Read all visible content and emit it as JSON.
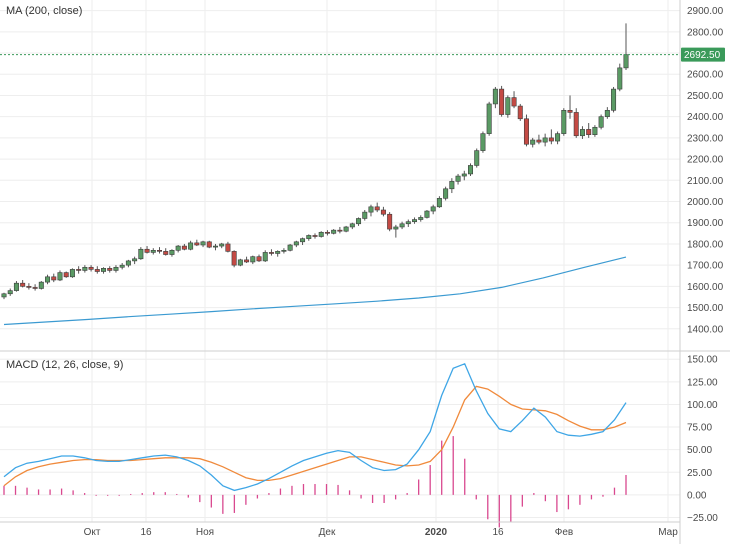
{
  "chart_data": [
    {
      "type": "candlestick",
      "title": "MA (200, close)",
      "ylim": [
        1300,
        2950
      ],
      "y_ticks": [
        "1400.00",
        "1500.00",
        "1600.00",
        "1700.00",
        "1800.00",
        "1900.00",
        "2000.00",
        "2100.00",
        "2200.00",
        "2300.00",
        "2400.00",
        "2500.00",
        "2600.00",
        "2700.00",
        "2800.00",
        "2900.00"
      ],
      "last_price": 2692.5,
      "last_price_label": "2692.50",
      "colors": {
        "up": "#5a9a64",
        "down": "#c44a44",
        "ma": "#3b9ad1",
        "price_line": "#3a9a5a"
      },
      "candles": [
        [
          1550,
          1570,
          1540,
          1565
        ],
        [
          1565,
          1590,
          1555,
          1580
        ],
        [
          1580,
          1625,
          1575,
          1615
        ],
        [
          1615,
          1630,
          1595,
          1600
        ],
        [
          1600,
          1615,
          1585,
          1595
        ],
        [
          1595,
          1610,
          1580,
          1590
        ],
        [
          1590,
          1625,
          1585,
          1620
        ],
        [
          1620,
          1655,
          1610,
          1645
        ],
        [
          1645,
          1660,
          1620,
          1630
        ],
        [
          1630,
          1675,
          1625,
          1665
        ],
        [
          1665,
          1670,
          1640,
          1645
        ],
        [
          1645,
          1685,
          1640,
          1680
        ],
        [
          1680,
          1695,
          1660,
          1675
        ],
        [
          1675,
          1700,
          1665,
          1690
        ],
        [
          1690,
          1700,
          1670,
          1680
        ],
        [
          1680,
          1695,
          1660,
          1670
        ],
        [
          1670,
          1690,
          1660,
          1685
        ],
        [
          1685,
          1695,
          1665,
          1675
        ],
        [
          1675,
          1700,
          1665,
          1690
        ],
        [
          1690,
          1710,
          1680,
          1700
        ],
        [
          1700,
          1725,
          1690,
          1720
        ],
        [
          1720,
          1740,
          1705,
          1730
        ],
        [
          1730,
          1785,
          1725,
          1775
        ],
        [
          1775,
          1790,
          1755,
          1760
        ],
        [
          1760,
          1780,
          1750,
          1770
        ],
        [
          1770,
          1785,
          1755,
          1765
        ],
        [
          1765,
          1780,
          1745,
          1750
        ],
        [
          1750,
          1775,
          1740,
          1770
        ],
        [
          1770,
          1795,
          1760,
          1790
        ],
        [
          1790,
          1800,
          1770,
          1775
        ],
        [
          1775,
          1815,
          1770,
          1805
        ],
        [
          1805,
          1820,
          1790,
          1795
        ],
        [
          1795,
          1815,
          1785,
          1810
        ],
        [
          1810,
          1815,
          1780,
          1785
        ],
        [
          1785,
          1800,
          1770,
          1790
        ],
        [
          1790,
          1805,
          1780,
          1800
        ],
        [
          1800,
          1810,
          1760,
          1765
        ],
        [
          1765,
          1770,
          1690,
          1700
        ],
        [
          1700,
          1730,
          1695,
          1725
        ],
        [
          1725,
          1740,
          1710,
          1715
        ],
        [
          1715,
          1745,
          1705,
          1740
        ],
        [
          1740,
          1750,
          1715,
          1720
        ],
        [
          1720,
          1770,
          1715,
          1760
        ],
        [
          1760,
          1775,
          1745,
          1755
        ],
        [
          1755,
          1770,
          1740,
          1765
        ],
        [
          1765,
          1780,
          1755,
          1770
        ],
        [
          1770,
          1800,
          1765,
          1795
        ],
        [
          1795,
          1815,
          1785,
          1810
        ],
        [
          1810,
          1830,
          1795,
          1825
        ],
        [
          1825,
          1845,
          1815,
          1840
        ],
        [
          1840,
          1850,
          1825,
          1835
        ],
        [
          1835,
          1860,
          1830,
          1855
        ],
        [
          1855,
          1865,
          1840,
          1850
        ],
        [
          1850,
          1870,
          1845,
          1865
        ],
        [
          1865,
          1880,
          1850,
          1860
        ],
        [
          1860,
          1885,
          1855,
          1880
        ],
        [
          1880,
          1900,
          1870,
          1895
        ],
        [
          1895,
          1925,
          1885,
          1920
        ],
        [
          1920,
          1960,
          1910,
          1950
        ],
        [
          1950,
          1985,
          1930,
          1975
        ],
        [
          1975,
          1995,
          1950,
          1960
        ],
        [
          1960,
          1975,
          1930,
          1940
        ],
        [
          1940,
          1950,
          1860,
          1870
        ],
        [
          1870,
          1890,
          1830,
          1880
        ],
        [
          1880,
          1905,
          1870,
          1895
        ],
        [
          1895,
          1915,
          1880,
          1905
        ],
        [
          1905,
          1925,
          1895,
          1915
        ],
        [
          1915,
          1935,
          1905,
          1925
        ],
        [
          1925,
          1960,
          1920,
          1955
        ],
        [
          1955,
          1985,
          1940,
          1975
        ],
        [
          1975,
          2025,
          1970,
          2015
        ],
        [
          2015,
          2070,
          2005,
          2060
        ],
        [
          2060,
          2110,
          2040,
          2095
        ],
        [
          2095,
          2130,
          2080,
          2120
        ],
        [
          2120,
          2145,
          2100,
          2130
        ],
        [
          2130,
          2180,
          2120,
          2170
        ],
        [
          2170,
          2250,
          2160,
          2240
        ],
        [
          2240,
          2330,
          2230,
          2320
        ],
        [
          2320,
          2470,
          2310,
          2460
        ],
        [
          2460,
          2540,
          2440,
          2530
        ],
        [
          2530,
          2545,
          2400,
          2410
        ],
        [
          2410,
          2500,
          2395,
          2490
        ],
        [
          2490,
          2520,
          2440,
          2450
        ],
        [
          2450,
          2460,
          2380,
          2390
        ],
        [
          2390,
          2410,
          2260,
          2270
        ],
        [
          2270,
          2300,
          2255,
          2290
        ],
        [
          2290,
          2315,
          2270,
          2280
        ],
        [
          2280,
          2320,
          2260,
          2300
        ],
        [
          2300,
          2340,
          2270,
          2285
        ],
        [
          2285,
          2330,
          2270,
          2320
        ],
        [
          2320,
          2440,
          2310,
          2430
        ],
        [
          2430,
          2500,
          2390,
          2420
        ],
        [
          2420,
          2440,
          2300,
          2310
        ],
        [
          2310,
          2355,
          2295,
          2340
        ],
        [
          2340,
          2370,
          2300,
          2315
        ],
        [
          2315,
          2360,
          2305,
          2350
        ],
        [
          2350,
          2410,
          2340,
          2400
        ],
        [
          2400,
          2445,
          2390,
          2430
        ],
        [
          2430,
          2540,
          2420,
          2530
        ],
        [
          2530,
          2650,
          2520,
          2630
        ],
        [
          2630,
          2840,
          2620,
          2692.5
        ]
      ],
      "ma": [
        1420,
        1432,
        1444,
        1457,
        1469,
        1481,
        1494,
        1506,
        1518,
        1530,
        1545,
        1565,
        1595,
        1640,
        1690,
        1738
      ],
      "x_ticks": [
        "Окт",
        "16",
        "Ноя",
        "Дек",
        "2020",
        "16",
        "Фев",
        "Мар"
      ]
    },
    {
      "type": "line",
      "title": "MACD (12, 26, close, 9)",
      "ylim": [
        -30,
        158
      ],
      "y_ticks": [
        "−25.00",
        "0.00",
        "25.00",
        "50.00",
        "75.00",
        "100.00",
        "125.00",
        "150.00"
      ],
      "colors": {
        "macd": "#3fa6e6",
        "signal": "#f08a3c",
        "histogram": "#d9488f"
      },
      "macd": [
        20,
        30,
        35,
        37,
        40,
        43,
        43,
        41,
        38,
        37,
        37,
        39,
        41,
        43,
        44,
        42,
        38,
        32,
        22,
        10,
        5,
        8,
        12,
        18,
        25,
        32,
        38,
        42,
        46,
        49,
        47,
        38,
        30,
        27,
        28,
        34,
        50,
        70,
        110,
        140,
        145,
        115,
        90,
        73,
        70,
        82,
        96,
        86,
        70,
        66,
        65,
        67,
        70,
        83,
        102
      ],
      "signal": [
        10,
        20,
        27,
        31,
        34,
        36,
        38,
        39,
        39,
        38,
        38,
        38,
        39,
        40,
        41,
        41,
        41,
        40,
        36,
        31,
        25,
        19,
        16,
        16,
        18,
        22,
        26,
        30,
        34,
        38,
        42,
        42,
        39,
        36,
        33,
        32,
        33,
        37,
        50,
        75,
        105,
        120,
        117,
        109,
        100,
        95,
        94,
        93,
        89,
        82,
        76,
        72,
        72,
        75,
        80
      ],
      "histogram": [
        10,
        10,
        8,
        6,
        6,
        7,
        5,
        2,
        -1,
        -1,
        -1,
        1,
        2,
        3,
        3,
        1,
        -3,
        -8,
        -14,
        -21,
        -20,
        -11,
        -4,
        2,
        7,
        10,
        12,
        12,
        12,
        11,
        5,
        -4,
        -9,
        -9,
        -5,
        2,
        17,
        33,
        60,
        65,
        40,
        -5,
        -27,
        -36,
        -30,
        -13,
        2,
        -7,
        -19,
        -16,
        -11,
        -5,
        -2,
        8,
        22
      ]
    }
  ]
}
